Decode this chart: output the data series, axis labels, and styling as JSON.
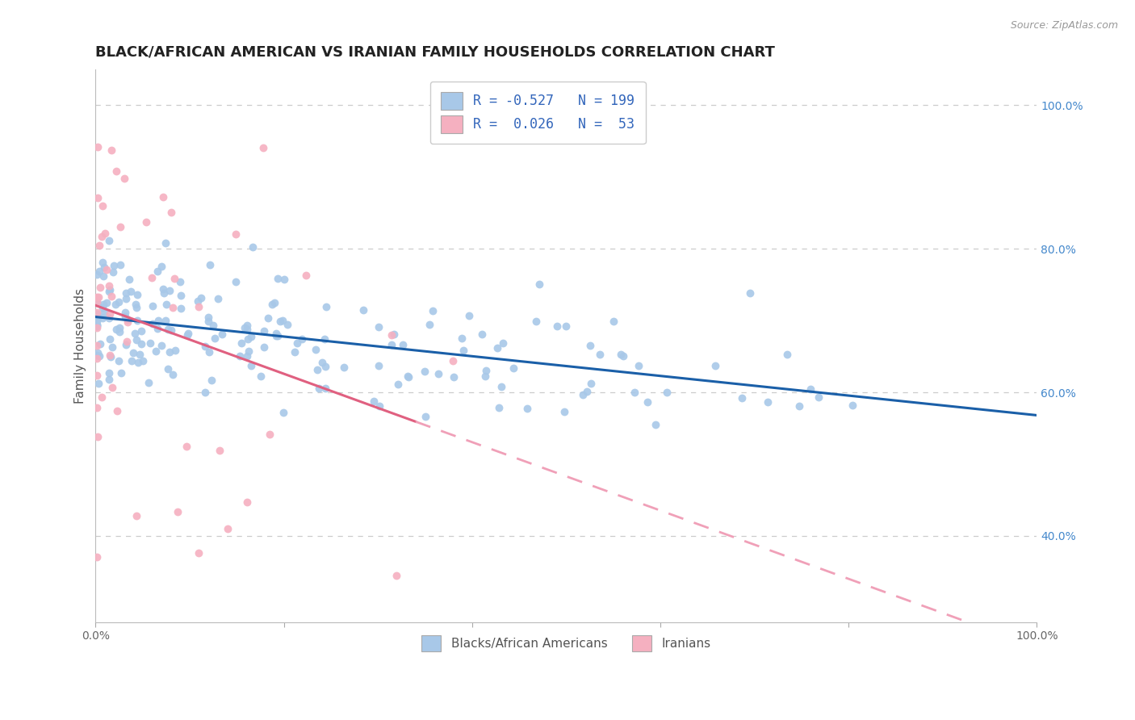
{
  "title": "BLACK/AFRICAN AMERICAN VS IRANIAN FAMILY HOUSEHOLDS CORRELATION CHART",
  "source_text": "Source: ZipAtlas.com",
  "ylabel": "Family Households",
  "xlim": [
    0.0,
    1.0
  ],
  "ylim": [
    0.28,
    1.05
  ],
  "xtick_positions": [
    0.0,
    0.2,
    0.4,
    0.6,
    0.8,
    1.0
  ],
  "xtick_labels": [
    "0.0%",
    "",
    "",
    "",
    "",
    "100.0%"
  ],
  "ytick_positions": [
    0.4,
    0.6,
    0.8,
    1.0
  ],
  "ytick_labels": [
    "40.0%",
    "60.0%",
    "80.0%",
    "100.0%"
  ],
  "blue_N": 199,
  "blue_R": -0.527,
  "pink_N": 53,
  "pink_R": 0.026,
  "blue_scatter_color": "#a8c8e8",
  "blue_line_color": "#1a5fa8",
  "pink_scatter_color": "#f5b0c0",
  "pink_line_solid_color": "#e06080",
  "pink_line_dash_color": "#f0a0b8",
  "background_color": "#ffffff",
  "grid_color": "#cccccc",
  "title_fontsize": 13,
  "tick_fontsize": 10,
  "ylabel_fontsize": 11,
  "legend_label_blue": "Blacks/African Americans",
  "legend_label_pink": "Iranians"
}
